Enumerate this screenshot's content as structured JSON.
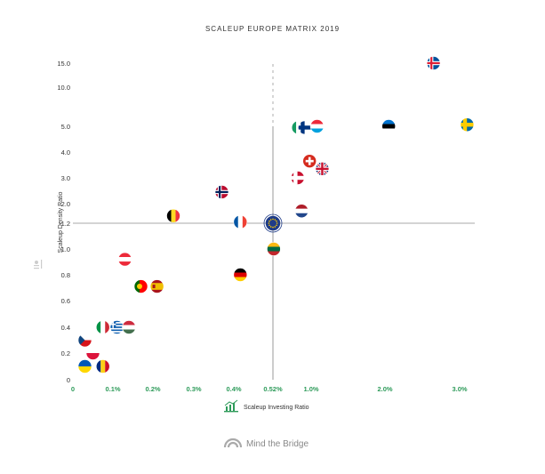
{
  "chart_data": {
    "type": "scatter",
    "title": "SCALEUP EUROPE MATRIX 2019",
    "xlabel": "Scaleup Investing Ratio",
    "ylabel": "Scaleup Density Ratio",
    "x_ticks": [
      {
        "v": 0,
        "label": "0"
      },
      {
        "v": 0.1,
        "label": "0.1%"
      },
      {
        "v": 0.2,
        "label": "0.2%"
      },
      {
        "v": 0.3,
        "label": "0.3%"
      },
      {
        "v": 0.4,
        "label": "0.4%"
      },
      {
        "v": 0.52,
        "label": "0.52%"
      },
      {
        "v": 1.0,
        "label": "1.0%"
      },
      {
        "v": 2.0,
        "label": "2.0%"
      },
      {
        "v": 3.0,
        "label": "3.0%"
      }
    ],
    "y_ticks": [
      {
        "v": 0,
        "label": "0"
      },
      {
        "v": 0.2,
        "label": "0.2"
      },
      {
        "v": 0.4,
        "label": "0.4"
      },
      {
        "v": 0.6,
        "label": "0.6"
      },
      {
        "v": 0.8,
        "label": "0.8"
      },
      {
        "v": 1.0,
        "label": "1.0"
      },
      {
        "v": 1.2,
        "label": "1.2"
      },
      {
        "v": 2.0,
        "label": "2.0"
      },
      {
        "v": 3.0,
        "label": "3.0"
      },
      {
        "v": 4.0,
        "label": "4.0"
      },
      {
        "v": 5.0,
        "label": "5.0"
      },
      {
        "v": 10.0,
        "label": "10.0"
      },
      {
        "v": 15.0,
        "label": "15.0"
      }
    ],
    "reference_lines": {
      "x": 0.52,
      "y": 1.2
    },
    "points": [
      {
        "country": "Iceland",
        "flag": "IS",
        "x": 2.65,
        "y": 15.0
      },
      {
        "country": "Sweden",
        "flag": "SE",
        "x": 3.1,
        "y": 5.2
      },
      {
        "country": "Estonia",
        "flag": "EE",
        "x": 2.05,
        "y": 5.0
      },
      {
        "country": "Ireland",
        "flag": "IE",
        "x": 0.84,
        "y": 4.95
      },
      {
        "country": "Finland",
        "flag": "FI",
        "x": 0.92,
        "y": 4.95
      },
      {
        "country": "Luxembourg",
        "flag": "LU",
        "x": 1.08,
        "y": 5.0
      },
      {
        "country": "Switzerland",
        "flag": "CH",
        "x": 0.98,
        "y": 3.65
      },
      {
        "country": "United Kingdom",
        "flag": "GB",
        "x": 1.15,
        "y": 3.35
      },
      {
        "country": "Denmark",
        "flag": "DK",
        "x": 0.83,
        "y": 3.0
      },
      {
        "country": "Norway",
        "flag": "NO",
        "x": 0.37,
        "y": 2.45
      },
      {
        "country": "Netherlands",
        "flag": "NL",
        "x": 0.88,
        "y": 1.7
      },
      {
        "country": "Belgium",
        "flag": "BE",
        "x": 0.25,
        "y": 1.5
      },
      {
        "country": "France",
        "flag": "FR",
        "x": 0.42,
        "y": 1.25
      },
      {
        "country": "Europe",
        "flag": "EU",
        "x": 0.52,
        "y": 1.2
      },
      {
        "country": "Lithuania",
        "flag": "LT",
        "x": 0.53,
        "y": 1.0
      },
      {
        "country": "Austria",
        "flag": "AT",
        "x": 0.13,
        "y": 0.92
      },
      {
        "country": "Germany",
        "flag": "DE",
        "x": 0.42,
        "y": 0.8
      },
      {
        "country": "Portugal",
        "flag": "PT",
        "x": 0.17,
        "y": 0.71
      },
      {
        "country": "Spain",
        "flag": "ES",
        "x": 0.21,
        "y": 0.71
      },
      {
        "country": "Italy",
        "flag": "IT",
        "x": 0.075,
        "y": 0.4
      },
      {
        "country": "Greece",
        "flag": "GR",
        "x": 0.11,
        "y": 0.4
      },
      {
        "country": "Hungary",
        "flag": "HU",
        "x": 0.14,
        "y": 0.4
      },
      {
        "country": "Czech Republic",
        "flag": "CZ",
        "x": 0.03,
        "y": 0.3
      },
      {
        "country": "Poland",
        "flag": "PL",
        "x": 0.05,
        "y": 0.2
      },
      {
        "country": "Ukraine",
        "flag": "UA",
        "x": 0.03,
        "y": 0.1
      },
      {
        "country": "Romania",
        "flag": "RO",
        "x": 0.075,
        "y": 0.1
      }
    ],
    "grid": false
  },
  "footer": {
    "brand": "Mind the Bridge"
  }
}
